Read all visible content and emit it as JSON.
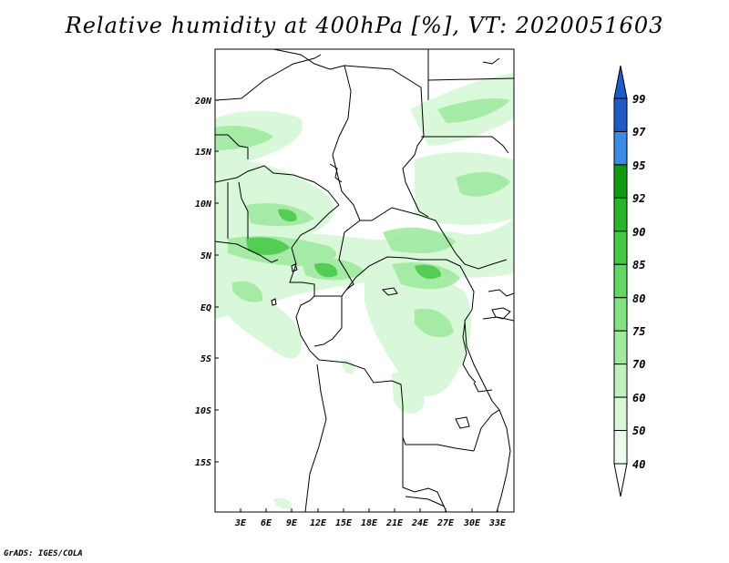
{
  "title": "Relative humidity at 400hPa [%], VT: 2020051603",
  "credit": "GrADS: IGES/COLA",
  "map": {
    "lat_labels": [
      "20N",
      "15N",
      "10N",
      "5N",
      "EQ",
      "5S",
      "10S",
      "15S"
    ],
    "lon_labels": [
      "3E",
      "6E",
      "9E",
      "12E",
      "15E",
      "18E",
      "21E",
      "24E",
      "27E",
      "30E",
      "33E"
    ]
  },
  "colorbar": {
    "labels": [
      "99",
      "97",
      "95",
      "92",
      "90",
      "85",
      "80",
      "75",
      "70",
      "60",
      "50",
      "40"
    ],
    "colors": [
      "#1e5ac8",
      "#3c8ce6",
      "#0f9a0f",
      "#29b529",
      "#46c846",
      "#63d763",
      "#80e280",
      "#a0eaa0",
      "#bff2bf",
      "#d8f8d8",
      "#ecfcec",
      "#ffffff"
    ],
    "top_triangle_color": "#1e5ac8",
    "bottom_triangle_color": "#ffffff"
  },
  "colors": {
    "field_light": "#d8f8d8",
    "field_mid": "#a0eaa0",
    "field_dark": "#46c846",
    "border": "#000000"
  }
}
